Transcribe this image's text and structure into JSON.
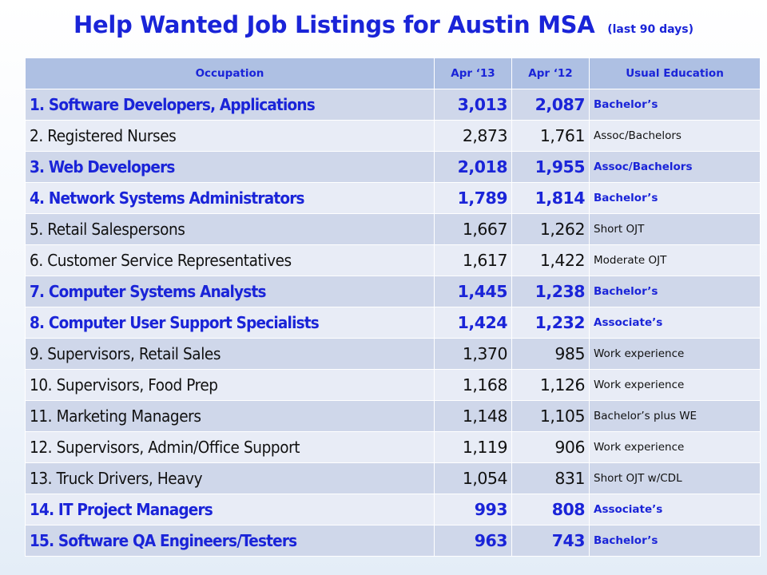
{
  "title": {
    "main": "Help Wanted Job Listings for Austin MSA",
    "sub": "(last 90 days)"
  },
  "table": {
    "headers": [
      "Occupation",
      "Apr ‘13",
      "Apr ‘12",
      "Usual Education"
    ],
    "rows": [
      {
        "occupation": "1. Software Developers, Applications",
        "apr13": "3,013",
        "apr12": "2,087",
        "education": "Bachelor’s",
        "highlight": true
      },
      {
        "occupation": "2. Registered Nurses",
        "apr13": "2,873",
        "apr12": "1,761",
        "education": "Assoc/Bachelors",
        "highlight": false
      },
      {
        "occupation": "3. Web Developers",
        "apr13": "2,018",
        "apr12": "1,955",
        "education": "Assoc/Bachelors",
        "highlight": true
      },
      {
        "occupation": "4. Network Systems Administrators",
        "apr13": "1,789",
        "apr12": "1,814",
        "education": "Bachelor’s",
        "highlight": true
      },
      {
        "occupation": "5. Retail Salespersons",
        "apr13": "1,667",
        "apr12": "1,262",
        "education": "Short OJT",
        "highlight": false
      },
      {
        "occupation": "6. Customer Service Representatives",
        "apr13": "1,617",
        "apr12": "1,422",
        "education": "Moderate OJT",
        "highlight": false
      },
      {
        "occupation": "7. Computer Systems Analysts",
        "apr13": "1,445",
        "apr12": "1,238",
        "education": "Bachelor’s",
        "highlight": true
      },
      {
        "occupation": "8. Computer User Support Specialists",
        "apr13": "1,424",
        "apr12": "1,232",
        "education": "Associate’s",
        "highlight": true
      },
      {
        "occupation": "9. Supervisors, Retail Sales",
        "apr13": "1,370",
        "apr12": "985",
        "education": "Work experience",
        "highlight": false
      },
      {
        "occupation": "10. Supervisors, Food Prep",
        "apr13": "1,168",
        "apr12": "1,126",
        "education": "Work experience",
        "highlight": false
      },
      {
        "occupation": "11. Marketing Managers",
        "apr13": "1,148",
        "apr12": "1,105",
        "education": "Bachelor’s plus WE",
        "highlight": false
      },
      {
        "occupation": "12. Supervisors, Admin/Office Support",
        "apr13": "1,119",
        "apr12": "906",
        "education": "Work experience",
        "highlight": false
      },
      {
        "occupation": "13. Truck Drivers, Heavy",
        "apr13": "1,054",
        "apr12": "831",
        "education": "Short OJT w/CDL",
        "highlight": false
      },
      {
        "occupation": "14. IT Project Managers",
        "apr13": "993",
        "apr12": "808",
        "education": "Associate’s",
        "highlight": true
      },
      {
        "occupation": "15. Software QA Engineers/Testers",
        "apr13": "963",
        "apr12": "743",
        "education": "Bachelor’s",
        "highlight": true
      }
    ]
  },
  "colors": {
    "accent": "#1a24d8",
    "header_bg": "#aec0e3",
    "row_odd": "#cfd7ea",
    "row_even": "#e8ecf6"
  }
}
